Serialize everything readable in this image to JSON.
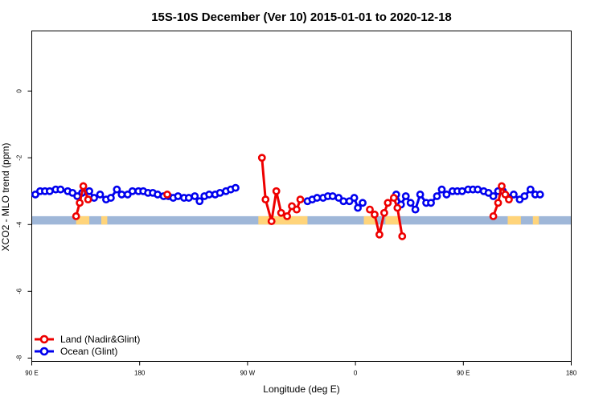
{
  "chart_data": {
    "type": "line",
    "title": "15S-10S December (Ver 10)   2015-01-01 to 2020-12-18",
    "xlabel": "Longitude (deg E)",
    "ylabel": "XCO2 - MLO trend (ppm)",
    "xlim": [
      90,
      540
    ],
    "ylim": [
      -8.1,
      1.8
    ],
    "x_ticks": [
      {
        "value": 90,
        "label": "90 E"
      },
      {
        "value": 180,
        "label": "180"
      },
      {
        "value": 270,
        "label": "90 W"
      },
      {
        "value": 360,
        "label": "0"
      },
      {
        "value": 450,
        "label": "90 E"
      },
      {
        "value": 540,
        "label": "180"
      }
    ],
    "y_ticks": [
      {
        "value": 0,
        "label": "0"
      },
      {
        "value": -2,
        "label": "-2"
      },
      {
        "value": -4,
        "label": "-4"
      },
      {
        "value": -6,
        "label": "-6"
      },
      {
        "value": -8,
        "label": "-8"
      }
    ],
    "legend_position": "bottom-left",
    "land_mask_band": {
      "y_top": -3.75,
      "y_bottom": -4.0,
      "color": "#9fb7d8"
    },
    "land_mask_color": "#ffd47a",
    "land_mask_spans": [
      [
        127,
        138
      ],
      [
        148,
        153
      ],
      [
        279,
        320
      ],
      [
        367,
        378
      ],
      [
        385,
        397
      ],
      [
        487,
        498
      ],
      [
        508,
        513
      ]
    ],
    "series": [
      {
        "name": "Ocean (Glint)",
        "color": "#0000ee",
        "segments": [
          [
            [
              93,
              -3.1
            ],
            [
              97,
              -3.0
            ],
            [
              101,
              -3.0
            ],
            [
              105,
              -3.0
            ],
            [
              110,
              -2.95
            ],
            [
              114,
              -2.95
            ],
            [
              120,
              -3.0
            ],
            [
              124,
              -3.05
            ],
            [
              128,
              -3.15
            ],
            [
              132,
              -3.05
            ],
            [
              138,
              -3.0
            ],
            [
              142,
              -3.2
            ],
            [
              147,
              -3.1
            ],
            [
              152,
              -3.25
            ],
            [
              156,
              -3.2
            ],
            [
              161,
              -2.95
            ],
            [
              165,
              -3.1
            ],
            [
              170,
              -3.1
            ],
            [
              174,
              -3.0
            ],
            [
              179,
              -3.0
            ],
            [
              183,
              -3.0
            ],
            [
              187,
              -3.05
            ],
            [
              191,
              -3.05
            ],
            [
              195,
              -3.1
            ],
            [
              200,
              -3.15
            ],
            [
              204,
              -3.15
            ],
            [
              208,
              -3.2
            ],
            [
              212,
              -3.15
            ],
            [
              217,
              -3.2
            ],
            [
              221,
              -3.2
            ],
            [
              226,
              -3.15
            ],
            [
              230,
              -3.3
            ],
            [
              234,
              -3.15
            ],
            [
              238,
              -3.1
            ],
            [
              243,
              -3.1
            ],
            [
              247,
              -3.05
            ],
            [
              252,
              -3.0
            ],
            [
              256,
              -2.95
            ],
            [
              260,
              -2.9
            ]
          ],
          [
            [
              320,
              -3.3
            ],
            [
              324,
              -3.25
            ],
            [
              328,
              -3.2
            ],
            [
              333,
              -3.2
            ],
            [
              337,
              -3.15
            ],
            [
              341,
              -3.15
            ],
            [
              346,
              -3.2
            ],
            [
              350,
              -3.3
            ],
            [
              355,
              -3.3
            ],
            [
              359,
              -3.2
            ],
            [
              362,
              -3.5
            ],
            [
              366,
              -3.35
            ]
          ],
          [
            [
              394,
              -3.1
            ],
            [
              398,
              -3.4
            ],
            [
              402,
              -3.15
            ],
            [
              406,
              -3.35
            ],
            [
              410,
              -3.55
            ],
            [
              414,
              -3.1
            ],
            [
              419,
              -3.35
            ],
            [
              423,
              -3.35
            ],
            [
              428,
              -3.15
            ],
            [
              432,
              -2.95
            ],
            [
              436,
              -3.1
            ],
            [
              441,
              -3.0
            ],
            [
              445,
              -3.0
            ],
            [
              449,
              -3.0
            ],
            [
              454,
              -2.95
            ],
            [
              458,
              -2.95
            ],
            [
              462,
              -2.95
            ],
            [
              467,
              -3.0
            ],
            [
              471,
              -3.05
            ],
            [
              475,
              -3.15
            ],
            [
              479,
              -3.0
            ],
            [
              483,
              -3.0
            ],
            [
              488,
              -3.2
            ],
            [
              492,
              -3.1
            ],
            [
              497,
              -3.25
            ],
            [
              501,
              -3.15
            ],
            [
              506,
              -2.95
            ],
            [
              510,
              -3.1
            ],
            [
              514,
              -3.1
            ]
          ]
        ]
      },
      {
        "name": "Land (Nadir&Glint)",
        "color": "#ee0000",
        "segments": [
          [
            [
              127,
              -3.75
            ],
            [
              130,
              -3.35
            ],
            [
              133,
              -2.85
            ],
            [
              137,
              -3.25
            ]
          ],
          [
            [
              203,
              -3.1
            ]
          ],
          [
            [
              282,
              -2.0
            ],
            [
              285,
              -3.25
            ],
            [
              290,
              -3.9
            ],
            [
              294,
              -3.0
            ],
            [
              298,
              -3.65
            ],
            [
              303,
              -3.75
            ],
            [
              307,
              -3.45
            ],
            [
              311,
              -3.55
            ],
            [
              314,
              -3.25
            ]
          ],
          [
            [
              372,
              -3.55
            ],
            [
              376,
              -3.7
            ],
            [
              380,
              -4.3
            ],
            [
              384,
              -3.65
            ],
            [
              387,
              -3.35
            ],
            [
              392,
              -3.2
            ],
            [
              395,
              -3.5
            ],
            [
              399,
              -4.35
            ]
          ],
          [
            [
              475,
              -3.75
            ],
            [
              479,
              -3.35
            ],
            [
              482,
              -2.85
            ],
            [
              485,
              -3.1
            ],
            [
              488,
              -3.25
            ]
          ]
        ]
      }
    ]
  }
}
